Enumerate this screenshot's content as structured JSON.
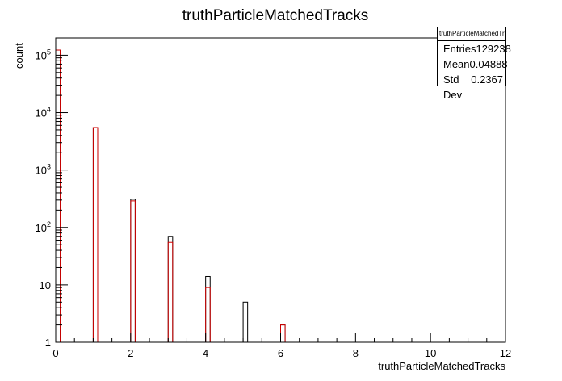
{
  "colors": {
    "background": "#ffffff",
    "axis": "#000000",
    "series_black": "#000000",
    "series_red": "#d00000"
  },
  "statbox": {
    "title": "truthParticleMatchedTracks",
    "rows": [
      {
        "label": "Entries",
        "value": "129238"
      },
      {
        "label": "Mean",
        "value": "0.04888"
      },
      {
        "label": "Std Dev",
        "value": "0.2367"
      }
    ]
  },
  "chart_data": {
    "type": "bar",
    "title": "truthParticleMatchedTracks",
    "xlabel": "truthParticleMatchedTracks",
    "ylabel": "count",
    "xlim": [
      0,
      12
    ],
    "ylim": [
      1,
      200000
    ],
    "yscale": "log",
    "bin_width": 0.12,
    "x_ticks": [
      "0",
      "2",
      "4",
      "6",
      "8",
      "10",
      "12"
    ],
    "y_ticks": [
      {
        "value": 1,
        "label": "1"
      },
      {
        "value": 10,
        "label": "10"
      },
      {
        "value": 100,
        "base": "10",
        "exp": "2"
      },
      {
        "value": 1000,
        "base": "10",
        "exp": "3"
      },
      {
        "value": 10000,
        "base": "10",
        "exp": "4"
      },
      {
        "value": 100000,
        "base": "10",
        "exp": "5"
      }
    ],
    "grid": false,
    "legend": "none",
    "series": [
      {
        "color": "#000000",
        "points": [
          {
            "x": 0,
            "y": 123000
          },
          {
            "x": 1,
            "y": 5500
          },
          {
            "x": 2,
            "y": 310
          },
          {
            "x": 3,
            "y": 70
          },
          {
            "x": 4,
            "y": 14
          },
          {
            "x": 5,
            "y": 5
          },
          {
            "x": 6,
            "y": 2
          }
        ]
      },
      {
        "color": "#d00000",
        "points": [
          {
            "x": 0,
            "y": 123000
          },
          {
            "x": 1,
            "y": 5500
          },
          {
            "x": 2,
            "y": 290
          },
          {
            "x": 3,
            "y": 55
          },
          {
            "x": 4,
            "y": 9
          },
          {
            "x": 6,
            "y": 2
          }
        ]
      }
    ]
  }
}
